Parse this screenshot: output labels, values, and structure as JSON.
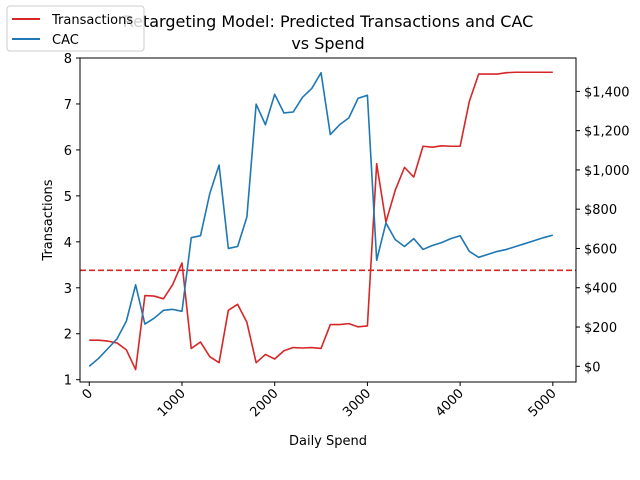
{
  "chart_data": {
    "type": "line",
    "title_line1": "Retargeting Model: Predicted Transactions and CAC",
    "title_line2": "vs Spend",
    "xlabel": "Daily Spend",
    "ylabel_left": "Transactions",
    "ylabel_right": "",
    "xlim": [
      -100,
      5250
    ],
    "ylim_left": [
      0.95,
      8.0
    ],
    "ylim_right": [
      -80,
      1570
    ],
    "x_ticks": [
      0,
      1000,
      2000,
      3000,
      4000,
      5000
    ],
    "x_tick_labels": [
      "0",
      "1000",
      "2000",
      "3000",
      "4000",
      "5000"
    ],
    "y_left_ticks": [
      1,
      2,
      3,
      4,
      5,
      6,
      7,
      8
    ],
    "y_left_tick_labels": [
      "1",
      "2",
      "3",
      "4",
      "5",
      "6",
      "7",
      "8"
    ],
    "y_right_ticks": [
      0,
      200,
      400,
      600,
      800,
      1000,
      1200,
      1400
    ],
    "y_right_tick_labels": [
      "$0",
      "$200",
      "$400",
      "$600",
      "$800",
      "$1,000",
      "$1,200",
      "$1,400"
    ],
    "reference_line": {
      "axis": "left",
      "y": 3.38,
      "color": "#d62728",
      "style": "dashed"
    },
    "legend_position": "upper-left",
    "grid": false,
    "x": [
      0,
      100,
      200,
      300,
      400,
      500,
      600,
      700,
      800,
      900,
      1000,
      1100,
      1200,
      1300,
      1400,
      1500,
      1600,
      1700,
      1800,
      1900,
      2000,
      2100,
      2200,
      2300,
      2400,
      2500,
      2600,
      2700,
      2800,
      2900,
      3000,
      3100,
      3200,
      3300,
      3400,
      3500,
      3600,
      3700,
      3800,
      3900,
      4000,
      4100,
      4200,
      4300,
      4400,
      4500,
      4600,
      4700,
      4800,
      4900,
      5000
    ],
    "series": [
      {
        "name": "Transactions",
        "axis": "left",
        "color": "#d62728",
        "values": [
          1.86,
          1.86,
          1.84,
          1.8,
          1.65,
          1.22,
          2.83,
          2.82,
          2.76,
          3.07,
          3.54,
          1.68,
          1.82,
          1.5,
          1.37,
          2.51,
          2.64,
          2.25,
          1.37,
          1.55,
          1.45,
          1.63,
          1.7,
          1.69,
          1.7,
          1.68,
          2.2,
          2.2,
          2.22,
          2.15,
          2.17,
          5.7,
          4.43,
          5.12,
          5.62,
          5.41,
          6.08,
          6.06,
          6.09,
          6.08,
          6.08,
          7.06,
          7.65,
          7.65,
          7.65,
          7.68,
          7.69,
          7.69,
          7.69,
          7.69,
          7.69
        ]
      },
      {
        "name": "CAC",
        "axis": "right",
        "color": "#1f77b4",
        "values": [
          0,
          40,
          90,
          140,
          230,
          415,
          215,
          245,
          285,
          290,
          280,
          655,
          665,
          880,
          1025,
          600,
          610,
          760,
          1335,
          1230,
          1385,
          1290,
          1295,
          1370,
          1415,
          1495,
          1180,
          1230,
          1265,
          1365,
          1380,
          540,
          730,
          645,
          610,
          650,
          595,
          615,
          630,
          650,
          665,
          585,
          555,
          570,
          585,
          595,
          610,
          625,
          640,
          655,
          668
        ]
      }
    ]
  }
}
